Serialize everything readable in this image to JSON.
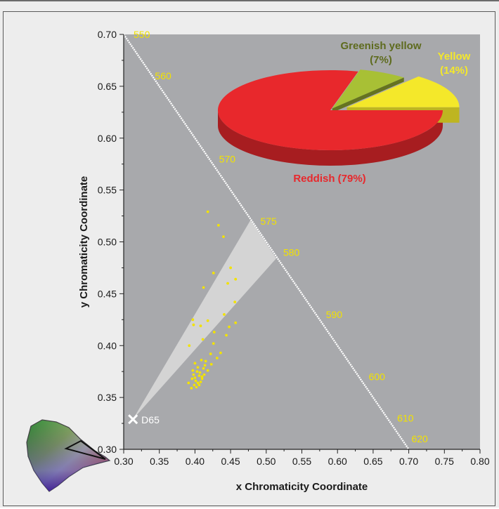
{
  "chart_data": [
    {
      "type": "scatter",
      "xlabel": "x Chromaticity Coordinate",
      "ylabel": "y Chromaticity Coordinate",
      "xlim": [
        0.3,
        0.8
      ],
      "ylim": [
        0.3,
        0.7
      ],
      "x_ticks": [
        "0.30",
        "0.35",
        "0.40",
        "0.45",
        "0.50",
        "0.55",
        "0.60",
        "0.65",
        "0.70",
        "0.75",
        "0.80"
      ],
      "y_ticks": [
        "0.30",
        "0.35",
        "0.40",
        "0.45",
        "0.50",
        "0.55",
        "0.60",
        "0.65",
        "0.70"
      ],
      "grid": false,
      "spectral_locus": {
        "points": [
          [
            0.3,
            0.7
          ],
          [
            0.7,
            0.3
          ]
        ],
        "wavelength_labels": [
          {
            "label": "550",
            "x": 0.3,
            "y": 0.7
          },
          {
            "label": "560",
            "x": 0.33,
            "y": 0.66
          },
          {
            "label": "570",
            "x": 0.42,
            "y": 0.58
          },
          {
            "label": "575",
            "x": 0.478,
            "y": 0.52
          },
          {
            "label": "580",
            "x": 0.51,
            "y": 0.49
          },
          {
            "label": "590",
            "x": 0.57,
            "y": 0.43
          },
          {
            "label": "600",
            "x": 0.63,
            "y": 0.37
          },
          {
            "label": "610",
            "x": 0.67,
            "y": 0.33
          },
          {
            "label": "620",
            "x": 0.69,
            "y": 0.31
          }
        ]
      },
      "white_point": {
        "label": "D65",
        "x": 0.313,
        "y": 0.329
      },
      "yellow_region": [
        [
          0.313,
          0.329
        ],
        [
          0.478,
          0.521
        ],
        [
          0.514,
          0.484
        ]
      ],
      "points": [
        [
          0.418,
          0.529
        ],
        [
          0.433,
          0.516
        ],
        [
          0.44,
          0.505
        ],
        [
          0.426,
          0.47
        ],
        [
          0.45,
          0.475
        ],
        [
          0.457,
          0.464
        ],
        [
          0.412,
          0.456
        ],
        [
          0.446,
          0.46
        ],
        [
          0.456,
          0.442
        ],
        [
          0.441,
          0.43
        ],
        [
          0.397,
          0.425
        ],
        [
          0.398,
          0.42
        ],
        [
          0.408,
          0.419
        ],
        [
          0.418,
          0.424
        ],
        [
          0.457,
          0.422
        ],
        [
          0.448,
          0.418
        ],
        [
          0.427,
          0.413
        ],
        [
          0.444,
          0.41
        ],
        [
          0.411,
          0.406
        ],
        [
          0.392,
          0.4
        ],
        [
          0.426,
          0.402
        ],
        [
          0.422,
          0.392
        ],
        [
          0.436,
          0.393
        ],
        [
          0.431,
          0.388
        ],
        [
          0.415,
          0.385
        ],
        [
          0.423,
          0.382
        ],
        [
          0.409,
          0.386
        ],
        [
          0.4,
          0.383
        ],
        [
          0.404,
          0.379
        ],
        [
          0.412,
          0.378
        ],
        [
          0.418,
          0.376
        ],
        [
          0.403,
          0.375
        ],
        [
          0.398,
          0.372
        ],
        [
          0.406,
          0.371
        ],
        [
          0.413,
          0.372
        ],
        [
          0.41,
          0.368
        ],
        [
          0.401,
          0.366
        ],
        [
          0.396,
          0.368
        ],
        [
          0.404,
          0.364
        ],
        [
          0.408,
          0.365
        ],
        [
          0.399,
          0.362
        ],
        [
          0.402,
          0.36
        ],
        [
          0.395,
          0.359
        ],
        [
          0.406,
          0.362
        ],
        [
          0.41,
          0.37
        ],
        [
          0.397,
          0.376
        ],
        [
          0.391,
          0.364
        ],
        [
          0.4,
          0.369
        ],
        [
          0.407,
          0.374
        ],
        [
          0.414,
          0.381
        ]
      ],
      "colors": {
        "plot_bg": "#a8a9ac",
        "points": "#f2e200",
        "region": "#d8d8d8",
        "locus": "#ffffff"
      }
    },
    {
      "type": "pie",
      "slices": [
        {
          "label": "Reddish (79%)",
          "value": 79,
          "color": "#e8282c",
          "label_color": "#e8282c"
        },
        {
          "label": "Greenish yellow (7%)",
          "value": 7,
          "color": "#a8c035",
          "label_color": "#5e6b1e"
        },
        {
          "label": "Yellow (14%)",
          "value": 14,
          "color": "#f4e82a",
          "label_color": "#f4e82a"
        }
      ]
    }
  ]
}
